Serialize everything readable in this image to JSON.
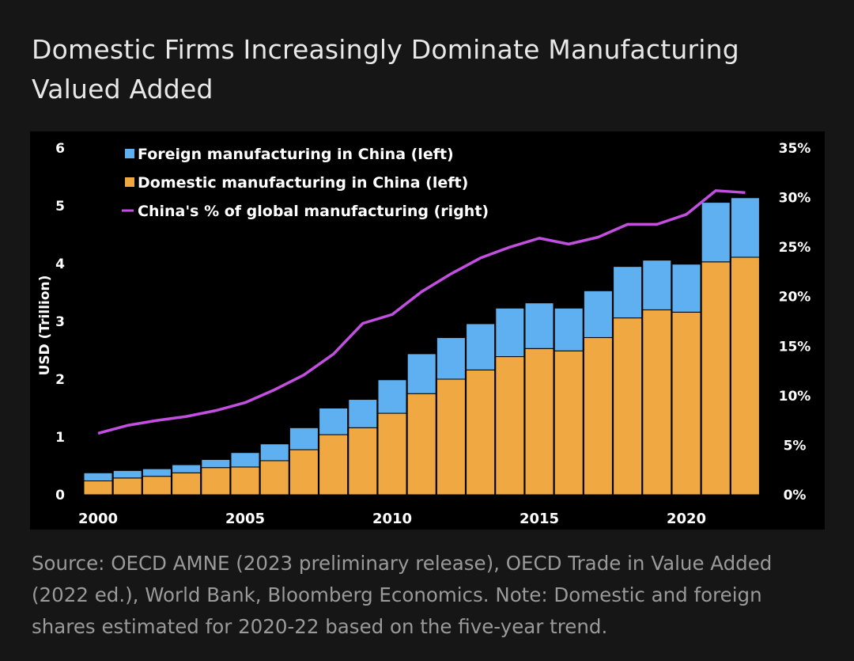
{
  "title": "Domestic Firms Increasingly Dominate Manufacturing Valued Added",
  "source_note": "Source: OECD AMNE (2023 preliminary release), OECD Trade in Value Added (2022 ed.), World Bank, Bloomberg Economics. Note: Domestic and foreign shares estimated for 2020-22 based on the five-year trend.",
  "chart_data": {
    "type": "bar",
    "stacked": true,
    "x": [
      2000,
      2001,
      2002,
      2003,
      2004,
      2005,
      2006,
      2007,
      2008,
      2009,
      2010,
      2011,
      2012,
      2013,
      2014,
      2015,
      2016,
      2017,
      2018,
      2019,
      2020,
      2021,
      2022
    ],
    "series": [
      {
        "name": "Domestic manufacturing in China (left)",
        "axis": "left",
        "color": "#f0a843",
        "values": [
          0.24,
          0.29,
          0.32,
          0.38,
          0.47,
          0.48,
          0.59,
          0.78,
          1.04,
          1.16,
          1.41,
          1.75,
          2.0,
          2.16,
          2.39,
          2.53,
          2.49,
          2.72,
          3.06,
          3.2,
          3.16,
          4.03,
          4.11
        ]
      },
      {
        "name": "Foreign manufacturing in China (left)",
        "axis": "left",
        "color": "#5fb0f0",
        "values": [
          0.14,
          0.13,
          0.13,
          0.14,
          0.14,
          0.25,
          0.29,
          0.38,
          0.46,
          0.49,
          0.58,
          0.69,
          0.72,
          0.8,
          0.84,
          0.79,
          0.74,
          0.81,
          0.89,
          0.86,
          0.83,
          1.03,
          1.03
        ]
      },
      {
        "name": "China's % of global manufacturing (right)",
        "axis": "right",
        "type": "line",
        "color": "#c34fe0",
        "values": [
          6.2,
          7.0,
          7.5,
          7.9,
          8.5,
          9.3,
          10.6,
          12.1,
          14.2,
          17.3,
          18.2,
          20.5,
          22.3,
          23.9,
          25.0,
          25.9,
          25.3,
          26.0,
          27.3,
          27.3,
          28.3,
          30.7,
          30.5
        ]
      }
    ],
    "legend_order": [
      "Foreign manufacturing in China (left)",
      "Domestic manufacturing in China (left)",
      "China's % of global manufacturing (right)"
    ],
    "legend_position": "top-left",
    "ylabel": "USD (Trillion)",
    "ylim": [
      0,
      6
    ],
    "y_ticks": [
      "0",
      "1",
      "2",
      "3",
      "4",
      "5",
      "6"
    ],
    "y2lim": [
      0,
      35
    ],
    "y2_ticks": [
      "0%",
      "5%",
      "10%",
      "15%",
      "20%",
      "25%",
      "30%",
      "35%"
    ],
    "x_ticks": [
      "2000",
      "2005",
      "2010",
      "2015",
      "2020"
    ],
    "grid": false
  }
}
